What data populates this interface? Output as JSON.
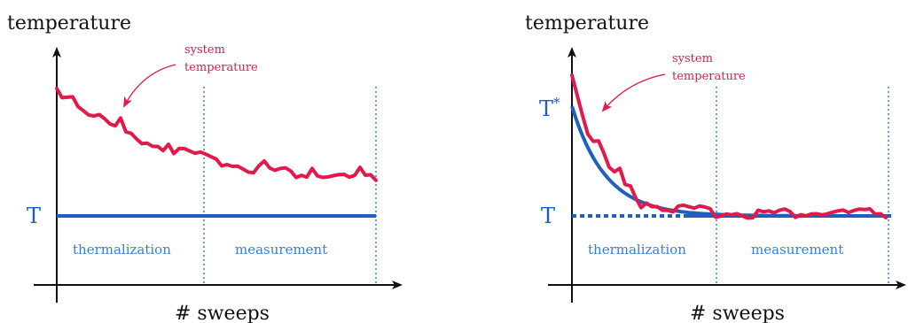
{
  "colors": {
    "axis": "#111111",
    "system_curve": "#e3194b",
    "target_line": "#1f5fbf",
    "phase_divider": "#3a7fd5"
  },
  "panels": [
    {
      "ylabel": "temperature",
      "xlabel": "# sweeps",
      "target_label": "T",
      "annotation_line1": "system",
      "annotation_line2": "temperature",
      "phase1_label": "thermalization",
      "phase2_label": "measurement"
    },
    {
      "ylabel": "temperature",
      "xlabel": "# sweeps",
      "target_label": "T",
      "start_label": "T",
      "start_label_sup": "*",
      "annotation_line1": "system",
      "annotation_line2": "temperature",
      "phase1_label": "thermalization",
      "phase2_label": "measurement"
    }
  ]
}
